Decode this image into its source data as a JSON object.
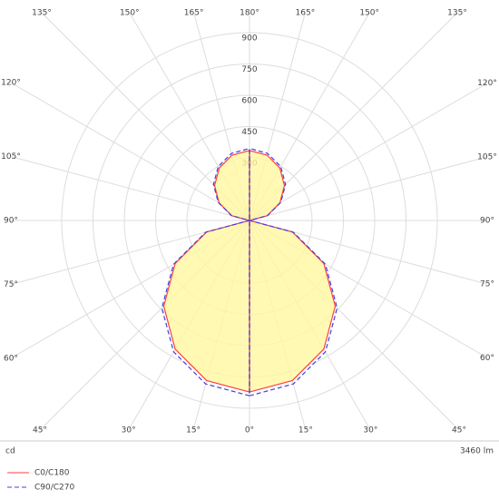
{
  "chart_data": {
    "type": "polar",
    "rlim": [
      0,
      900
    ],
    "rticks": [
      300,
      450,
      600,
      750,
      900
    ],
    "angle_ticks": [
      {
        "value": 0,
        "label": "0°"
      },
      {
        "value": 15,
        "label": "15°"
      },
      {
        "value": 30,
        "label": "30°"
      },
      {
        "value": 45,
        "label": "45°"
      },
      {
        "value": 60,
        "label": "60°"
      },
      {
        "value": 75,
        "label": "75°"
      },
      {
        "value": 90,
        "label": "90°"
      },
      {
        "value": 105,
        "label": "105°"
      },
      {
        "value": 120,
        "label": "120°"
      },
      {
        "value": 135,
        "label": "135°"
      },
      {
        "value": 150,
        "label": "150°"
      },
      {
        "value": 165,
        "label": "165°"
      },
      {
        "value": 180,
        "label": "180°"
      },
      {
        "value": -15,
        "label": "15°"
      },
      {
        "value": -30,
        "label": "30°"
      },
      {
        "value": -45,
        "label": "45°"
      },
      {
        "value": -60,
        "label": "60°"
      },
      {
        "value": -75,
        "label": "75°"
      },
      {
        "value": -90,
        "label": "90°"
      },
      {
        "value": -105,
        "label": "105°"
      },
      {
        "value": -120,
        "label": "120°"
      },
      {
        "value": -135,
        "label": "135°"
      },
      {
        "value": -150,
        "label": "150°"
      },
      {
        "value": -165,
        "label": "165°"
      }
    ],
    "x": [
      0,
      15,
      30,
      45,
      60,
      75,
      90,
      105,
      120,
      135,
      150,
      165,
      180
    ],
    "series": [
      {
        "name": "C0/C180",
        "color": "#ff4040",
        "fill": "#fff8a0",
        "dashed": false,
        "values": [
          822,
          794,
          712,
          581,
          411,
          213,
          0,
          87,
          168,
          237,
          290,
          324,
          335
        ]
      },
      {
        "name": "C90/C270",
        "color": "#4040e0",
        "dashed": true,
        "values": [
          840,
          811,
          727,
          594,
          420,
          217,
          0,
          89,
          173,
          244,
          299,
          333,
          345
        ]
      }
    ],
    "unit": "cd",
    "flux": "3460 lm"
  }
}
